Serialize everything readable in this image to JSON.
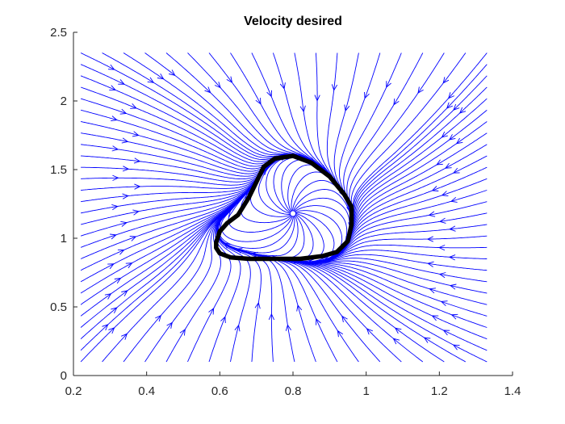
{
  "chart_data": {
    "type": "streamline",
    "title": "Velocity desired",
    "xlabel": "",
    "ylabel": "",
    "xlim": [
      0.2,
      1.4
    ],
    "ylim": [
      0,
      2.5
    ],
    "x_ticks": [
      0.2,
      0.4,
      0.6,
      0.8,
      1,
      1.2,
      1.4
    ],
    "x_tick_labels": [
      "0.2",
      "0.4",
      "0.6",
      "0.8",
      "1",
      "1.2",
      "1.4"
    ],
    "y_ticks": [
      0,
      0.5,
      1,
      1.5,
      2,
      2.5
    ],
    "y_tick_labels": [
      "0",
      "0.5",
      "1",
      "1.5",
      "2",
      "2.5"
    ],
    "grid": false,
    "box": false,
    "streamline_color": "#0000ff",
    "field": {
      "domain_x": [
        0.22,
        1.33
      ],
      "domain_y": [
        0.1,
        2.35
      ],
      "attractor_center": [
        0.8,
        1.18
      ],
      "description": "streamlines converge inward from the boundary onto a closed curve and diverge outward from a central source point"
    },
    "series": [
      {
        "style": "thick black curve",
        "color": "#000000",
        "points": [
          [
            0.59,
            0.93
          ],
          [
            0.6,
            0.89
          ],
          [
            0.63,
            0.86
          ],
          [
            0.68,
            0.85
          ],
          [
            0.75,
            0.85
          ],
          [
            0.82,
            0.85
          ],
          [
            0.88,
            0.87
          ],
          [
            0.92,
            0.9
          ],
          [
            0.95,
            0.98
          ],
          [
            0.96,
            1.1
          ],
          [
            0.96,
            1.23
          ],
          [
            0.94,
            1.32
          ],
          [
            0.9,
            1.45
          ],
          [
            0.85,
            1.55
          ],
          [
            0.8,
            1.6
          ],
          [
            0.75,
            1.58
          ],
          [
            0.72,
            1.52
          ],
          [
            0.7,
            1.41
          ],
          [
            0.68,
            1.3
          ],
          [
            0.65,
            1.17
          ],
          [
            0.62,
            1.11
          ],
          [
            0.6,
            1.05
          ],
          [
            0.59,
            0.97
          ],
          [
            0.59,
            0.93
          ]
        ]
      }
    ]
  }
}
